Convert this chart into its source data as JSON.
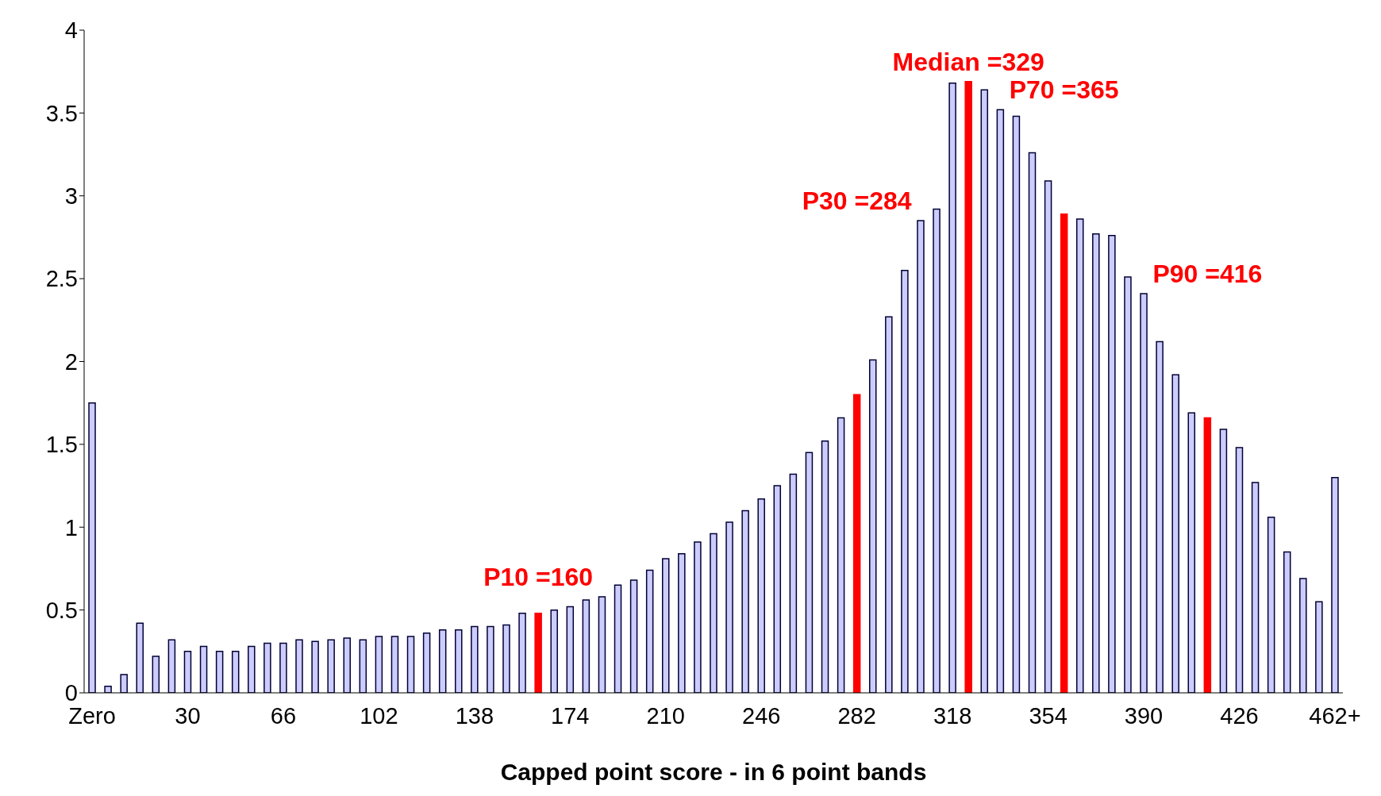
{
  "chart_data": {
    "type": "bar",
    "xlabel": "Capped point score - in 6 point bands",
    "categories": [
      "Zero",
      null,
      null,
      null,
      null,
      null,
      "30",
      null,
      null,
      null,
      null,
      null,
      "66",
      null,
      null,
      null,
      null,
      null,
      "102",
      null,
      null,
      null,
      null,
      null,
      "138",
      null,
      null,
      null,
      null,
      null,
      "174",
      null,
      null,
      null,
      null,
      null,
      "210",
      null,
      null,
      null,
      null,
      null,
      "246",
      null,
      null,
      null,
      null,
      null,
      "282",
      null,
      null,
      null,
      null,
      null,
      "318",
      null,
      null,
      null,
      null,
      null,
      "354",
      null,
      null,
      null,
      null,
      null,
      "390",
      null,
      null,
      null,
      null,
      null,
      "426",
      null,
      null,
      null,
      null,
      null,
      "462+"
    ],
    "values": [
      1.75,
      0.04,
      0.11,
      0.42,
      0.22,
      0.32,
      0.25,
      0.28,
      0.25,
      0.25,
      0.28,
      0.3,
      0.3,
      0.32,
      0.31,
      0.32,
      0.33,
      0.32,
      0.34,
      0.34,
      0.34,
      0.36,
      0.38,
      0.38,
      0.4,
      0.4,
      0.41,
      0.48,
      0.48,
      0.5,
      0.52,
      0.56,
      0.58,
      0.65,
      0.68,
      0.74,
      0.81,
      0.84,
      0.91,
      0.96,
      1.03,
      1.1,
      1.17,
      1.25,
      1.32,
      1.45,
      1.52,
      1.66,
      1.8,
      2.01,
      2.27,
      2.55,
      2.85,
      2.92,
      3.68,
      3.69,
      3.64,
      3.52,
      3.48,
      3.26,
      3.09,
      2.89,
      2.86,
      2.77,
      2.76,
      2.51,
      2.41,
      2.12,
      1.92,
      1.69,
      1.66,
      1.59,
      1.48,
      1.27,
      1.06,
      0.85,
      0.69,
      0.55,
      1.3
    ],
    "colors": [
      "#ccccff",
      "#ccccff",
      "#ccccff",
      "#ccccff",
      "#ccccff",
      "#ccccff",
      "#ccccff",
      "#ccccff",
      "#ccccff",
      "#ccccff",
      "#ccccff",
      "#ccccff",
      "#ccccff",
      "#ccccff",
      "#ccccff",
      "#ccccff",
      "#ccccff",
      "#ccccff",
      "#ccccff",
      "#ccccff",
      "#ccccff",
      "#ccccff",
      "#ccccff",
      "#ccccff",
      "#ccccff",
      "#ccccff",
      "#ccccff",
      "#ccccff",
      "#ff0000",
      "#ccccff",
      "#ccccff",
      "#ccccff",
      "#ccccff",
      "#ccccff",
      "#ccccff",
      "#ccccff",
      "#ccccff",
      "#ccccff",
      "#ccccff",
      "#ccccff",
      "#ccccff",
      "#ccccff",
      "#ccccff",
      "#ccccff",
      "#ccccff",
      "#ccccff",
      "#ccccff",
      "#ccccff",
      "#ff0000",
      "#ccccff",
      "#ccccff",
      "#ccccff",
      "#ccccff",
      "#ccccff",
      "#ccccff",
      "#ff0000",
      "#ccccff",
      "#ccccff",
      "#ccccff",
      "#ccccff",
      "#ccccff",
      "#ff0000",
      "#ccccff",
      "#ccccff",
      "#ccccff",
      "#ccccff",
      "#ccccff",
      "#ccccff",
      "#ccccff",
      "#ccccff",
      "#ff0000",
      "#ccccff",
      "#ccccff",
      "#ccccff",
      "#ccccff",
      "#ccccff",
      "#ccccff",
      "#ccccff",
      "#ccccff"
    ],
    "annotations": [
      "P10 =160",
      "P30 =284",
      "Median =329",
      "P70 =365",
      "P90 =416"
    ],
    "ylim": [
      0,
      4
    ],
    "yticks": [
      0,
      0.5,
      1,
      1.5,
      2,
      2.5,
      3,
      3.5,
      4
    ],
    "grid": false,
    "legend": false
  }
}
